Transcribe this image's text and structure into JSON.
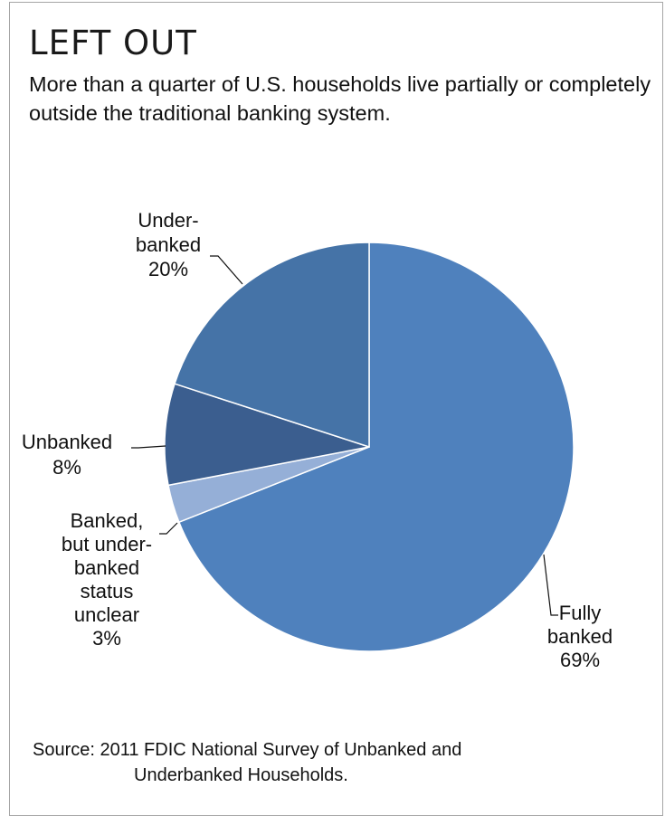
{
  "title": "LEFT OUT",
  "subtitle": "More than a quarter of U.S. households live partially or completely outside the traditional banking system.",
  "source": {
    "line1": "Source: 2011 FDIC National Survey of Unbanked and",
    "line2": "Underbanked Households."
  },
  "chart_data": {
    "type": "pie",
    "title": "LEFT OUT",
    "slices": [
      {
        "name": "Fully banked",
        "value": 69,
        "label_lines": [
          "Fully",
          "banked",
          "69%"
        ],
        "color": "#4f81bd"
      },
      {
        "name": "Banked, but underbanked status unclear",
        "value": 3,
        "label_lines": [
          "Banked,",
          "but under-",
          "banked",
          "status",
          "unclear",
          "3%"
        ],
        "color": "#95afd7"
      },
      {
        "name": "Unbanked",
        "value": 8,
        "label_lines": [
          "Unbanked",
          "8%"
        ],
        "color": "#3b5e8f"
      },
      {
        "name": "Underbanked",
        "value": 20,
        "label_lines": [
          "Under-",
          "banked",
          "20%"
        ],
        "color": "#4573a7"
      }
    ]
  }
}
